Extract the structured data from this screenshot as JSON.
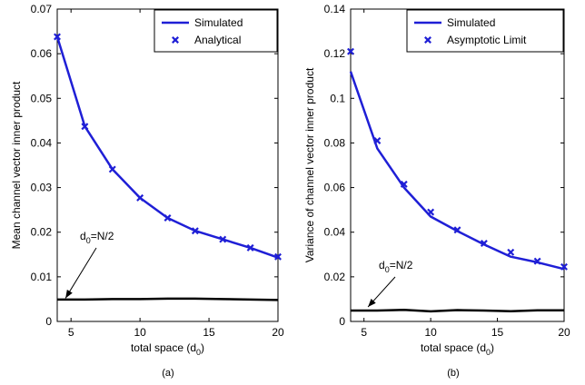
{
  "chart_data": [
    {
      "type": "line",
      "panel_label": "(a)",
      "xlabel": "total space (d",
      "xlabel_sub": "0",
      "xlabel_end": ")",
      "ylabel": "Mean channel vector inner product",
      "xlim": [
        4,
        20
      ],
      "ylim": [
        0,
        0.07
      ],
      "xticks": [
        {
          "v": 5,
          "label": "5"
        },
        {
          "v": 10,
          "label": "10"
        },
        {
          "v": 15,
          "label": "15"
        },
        {
          "v": 20,
          "label": "20"
        }
      ],
      "yticks": [
        {
          "v": 0,
          "label": "0"
        },
        {
          "v": 0.01,
          "label": "0.01"
        },
        {
          "v": 0.02,
          "label": "0.02"
        },
        {
          "v": 0.03,
          "label": "0.03"
        },
        {
          "v": 0.04,
          "label": "0.04"
        },
        {
          "v": 0.05,
          "label": "0.05"
        },
        {
          "v": 0.06,
          "label": "0.06"
        },
        {
          "v": 0.07,
          "label": "0.07"
        }
      ],
      "grid": false,
      "legend_position": "top-right",
      "series": [
        {
          "name": "Simulated",
          "style": "line",
          "color": "#1f1fd6",
          "x": [
            4,
            6,
            8,
            10,
            12,
            14,
            16,
            18,
            20
          ],
          "y": [
            0.0638,
            0.0437,
            0.0341,
            0.0277,
            0.0232,
            0.0203,
            0.0184,
            0.0165,
            0.0143
          ]
        },
        {
          "name": "Analytical",
          "style": "marker",
          "color": "#1f1fd6",
          "x": [
            4,
            6,
            8,
            10,
            12,
            14,
            16,
            18,
            20
          ],
          "y": [
            0.0638,
            0.0437,
            0.0341,
            0.0277,
            0.0232,
            0.0203,
            0.0184,
            0.0165,
            0.0145
          ]
        },
        {
          "name": "",
          "style": "line",
          "color": "#000000",
          "x": [
            4,
            6,
            8,
            10,
            12,
            14,
            16,
            18,
            20
          ],
          "y": [
            0.0049,
            0.0049,
            0.005,
            0.005,
            0.0051,
            0.0051,
            0.005,
            0.0049,
            0.0048
          ]
        }
      ],
      "annotation": {
        "text": "d",
        "sub": "0",
        "rest": "=N/2",
        "arrow_to": [
          4.6,
          0.0052
        ]
      }
    },
    {
      "type": "line",
      "panel_label": "(b)",
      "xlabel": "total space (d",
      "xlabel_sub": "0",
      "xlabel_end": ")",
      "ylabel": "Variance of channel vector inner product",
      "xlim": [
        4,
        20
      ],
      "ylim": [
        0,
        0.14
      ],
      "xticks": [
        {
          "v": 5,
          "label": "5"
        },
        {
          "v": 10,
          "label": "10"
        },
        {
          "v": 15,
          "label": "15"
        },
        {
          "v": 20,
          "label": "20"
        }
      ],
      "yticks": [
        {
          "v": 0,
          "label": "0"
        },
        {
          "v": 0.02,
          "label": "0.02"
        },
        {
          "v": 0.04,
          "label": "0.04"
        },
        {
          "v": 0.06,
          "label": "0.06"
        },
        {
          "v": 0.08,
          "label": "0.08"
        },
        {
          "v": 0.1,
          "label": "0.1"
        },
        {
          "v": 0.12,
          "label": "0.12"
        },
        {
          "v": 0.14,
          "label": "0.14"
        }
      ],
      "grid": false,
      "legend_position": "top-right",
      "series": [
        {
          "name": "Simulated",
          "style": "line",
          "color": "#1f1fd6",
          "x": [
            4,
            6,
            8,
            10,
            12,
            14,
            16,
            18,
            20
          ],
          "y": [
            0.112,
            0.0775,
            0.06,
            0.047,
            0.0405,
            0.0345,
            0.029,
            0.0265,
            0.0235
          ]
        },
        {
          "name": "Asymptotic Limit",
          "style": "marker",
          "color": "#1f1fd6",
          "x": [
            4,
            6,
            8,
            10,
            12,
            14,
            16,
            18,
            20
          ],
          "y": [
            0.121,
            0.081,
            0.0615,
            0.049,
            0.041,
            0.035,
            0.031,
            0.027,
            0.0245
          ]
        },
        {
          "name": "",
          "style": "line",
          "color": "#000000",
          "x": [
            4,
            6,
            8,
            10,
            12,
            14,
            16,
            18,
            20
          ],
          "y": [
            0.0049,
            0.0049,
            0.0052,
            0.0045,
            0.0051,
            0.0049,
            0.0046,
            0.005,
            0.005
          ]
        }
      ],
      "annotation": {
        "text": "d",
        "sub": "0",
        "rest": "=N/2",
        "arrow_to": [
          5.3,
          0.0065
        ]
      }
    }
  ]
}
